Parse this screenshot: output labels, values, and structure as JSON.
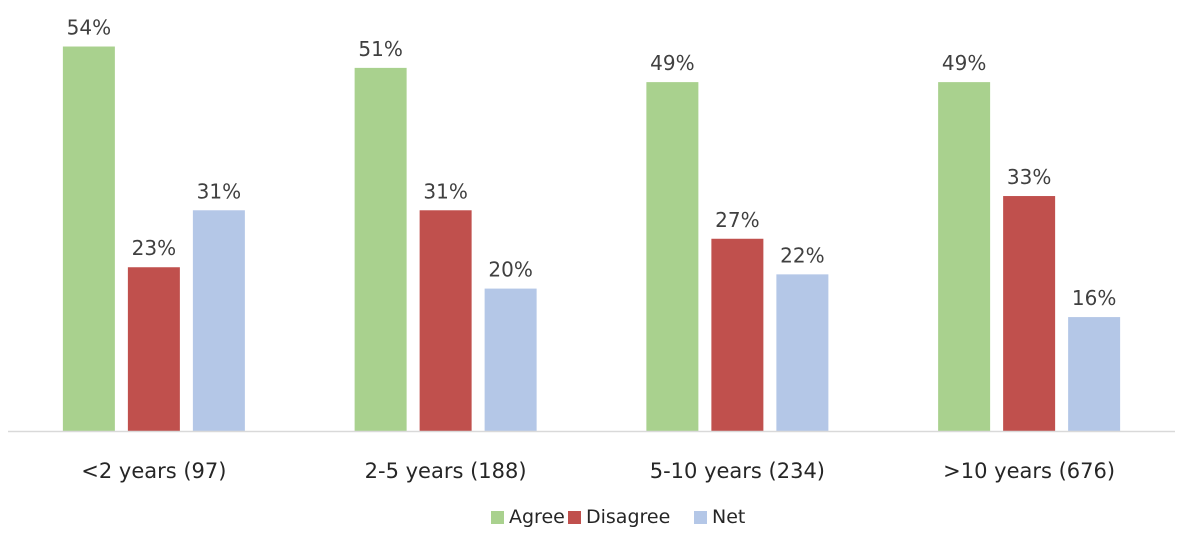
{
  "chart_data": {
    "type": "bar",
    "categories": [
      "<2 years (97)",
      "2-5 years (188)",
      "5-10 years (234)",
      ">10 years (676)"
    ],
    "series": [
      {
        "name": "Agree",
        "values": [
          54,
          51,
          49,
          49
        ],
        "labels": [
          "54%",
          "51%",
          "49%",
          "49%"
        ],
        "color": "#a9d18e"
      },
      {
        "name": "Disagree",
        "values": [
          23,
          31,
          27,
          33
        ],
        "labels": [
          "23%",
          "31%",
          "27%",
          "33%"
        ],
        "color": "#c0504d"
      },
      {
        "name": "Net",
        "values": [
          31,
          20,
          22,
          16
        ],
        "labels": [
          "31%",
          "20%",
          "22%",
          "16%"
        ],
        "color": "#b4c7e7"
      }
    ],
    "ylim": [
      0,
      60
    ],
    "title": "",
    "xlabel": "",
    "ylabel": "",
    "grid": false,
    "legend": "bottom-center",
    "axis_color": "#d9d9d9"
  }
}
